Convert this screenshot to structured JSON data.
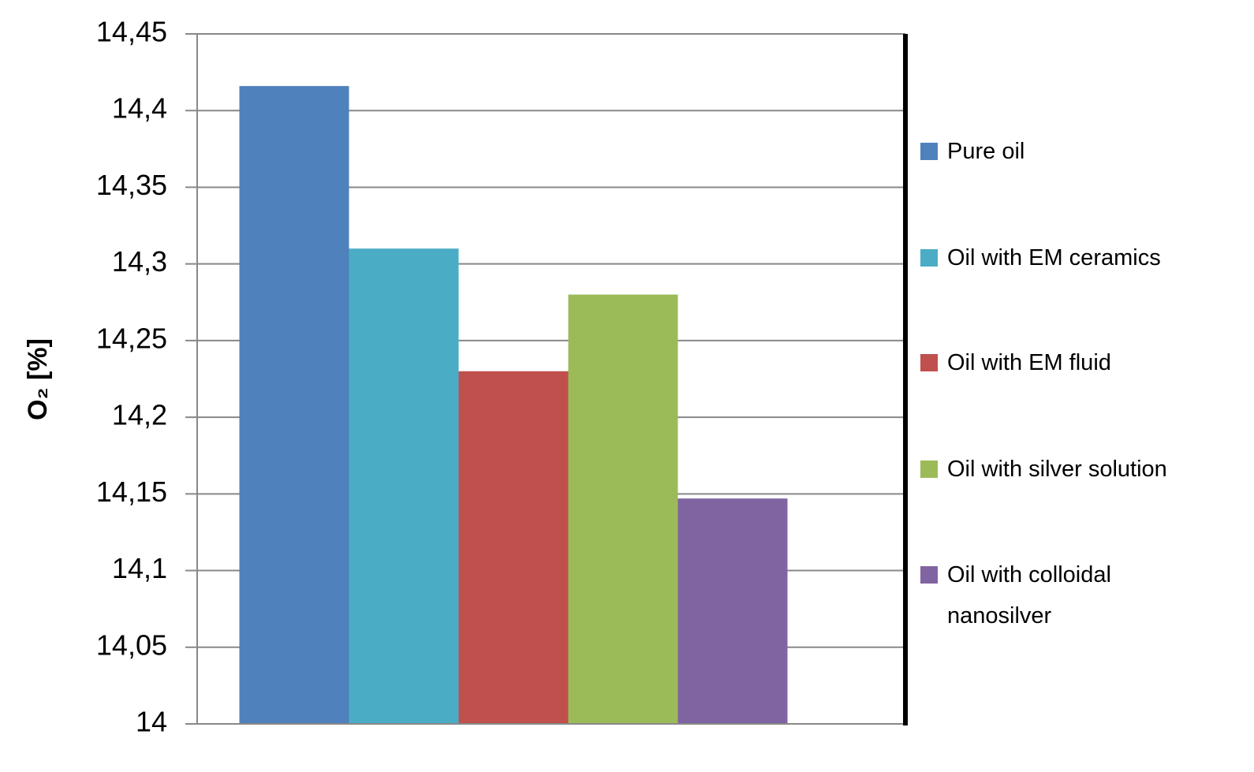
{
  "chart_data": {
    "type": "bar",
    "y_label": "O₂ [%]",
    "categories": [
      null
    ],
    "series": [
      {
        "name": "Pure oil",
        "color": "#4f81bd",
        "values": [
          14.416
        ]
      },
      {
        "name": "Oil with EM ceramics",
        "color": "#4bacc6",
        "values": [
          14.31
        ]
      },
      {
        "name": "Oil with EM fluid",
        "color": "#c0504d",
        "values": [
          14.23
        ]
      },
      {
        "name": "Oil with silver solution",
        "color": "#9bbb59",
        "values": [
          14.28
        ]
      },
      {
        "name": "Oil with colloidal nanosilver",
        "color": "#8064a2",
        "values": [
          14.147
        ]
      }
    ],
    "ylim": [
      14,
      14.45
    ],
    "yticks": [
      14,
      {
        "value": 14.05,
        "label": "14,05"
      },
      {
        "value": 14.1,
        "label": "14,1"
      },
      {
        "value": 14.15,
        "label": "14,15"
      },
      {
        "value": 14.2,
        "label": "14,2"
      },
      {
        "value": 14.25,
        "label": "14,25"
      },
      {
        "value": 14.3,
        "label": "14,3"
      },
      {
        "value": 14.35,
        "label": "14,35"
      },
      {
        "value": 14.4,
        "label": "14,4"
      },
      {
        "value": 14.45,
        "label": "14,45"
      }
    ],
    "grid": true,
    "legend": "right"
  }
}
